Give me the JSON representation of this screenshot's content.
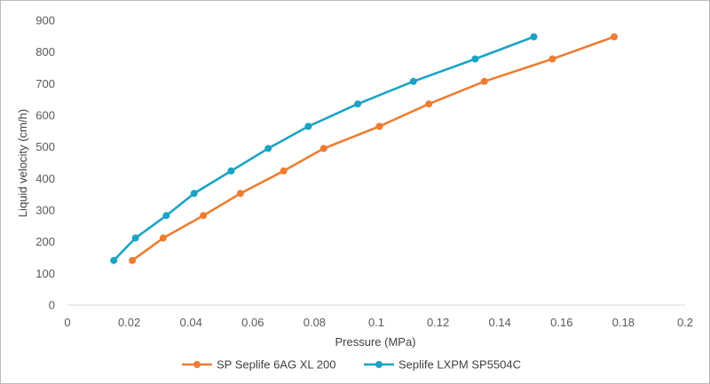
{
  "chart_data": {
    "type": "line",
    "title": "",
    "xlabel": "Pressure (MPa)",
    "ylabel": "Liquid velocity (cm/h)",
    "xlim": [
      0,
      0.2
    ],
    "ylim": [
      0,
      900
    ],
    "xticks": [
      0,
      0.02,
      0.04,
      0.06,
      0.08,
      0.1,
      0.12,
      0.14,
      0.16,
      0.18,
      0.2
    ],
    "xtick_labels": [
      "0",
      "0.02",
      "0.04",
      "0.06",
      "0.08",
      "0.1",
      "0.12",
      "0.14",
      "0.16",
      "0.18",
      "0.2"
    ],
    "yticks": [
      0,
      100,
      200,
      300,
      400,
      500,
      600,
      700,
      800,
      900
    ],
    "ytick_labels": [
      "0",
      "100",
      "200",
      "300",
      "400",
      "500",
      "600",
      "700",
      "800",
      "900"
    ],
    "grid": false,
    "legend_position": "bottom",
    "series": [
      {
        "name": "SP Seplife 6AG XL 200",
        "color": "#ED7D31",
        "x": [
          0.021,
          0.031,
          0.044,
          0.056,
          0.07,
          0.083,
          0.101,
          0.117,
          0.135,
          0.157,
          0.177
        ],
        "y": [
          141,
          212,
          283,
          353,
          424,
          495,
          565,
          636,
          707,
          778,
          848
        ]
      },
      {
        "name": "Seplife LXPM SP5504C",
        "color": "#1BA3C6",
        "x": [
          0.015,
          0.022,
          0.032,
          0.041,
          0.053,
          0.065,
          0.078,
          0.094,
          0.112,
          0.132,
          0.151
        ],
        "y": [
          141,
          212,
          283,
          353,
          424,
          495,
          565,
          636,
          707,
          778,
          848
        ]
      }
    ]
  }
}
